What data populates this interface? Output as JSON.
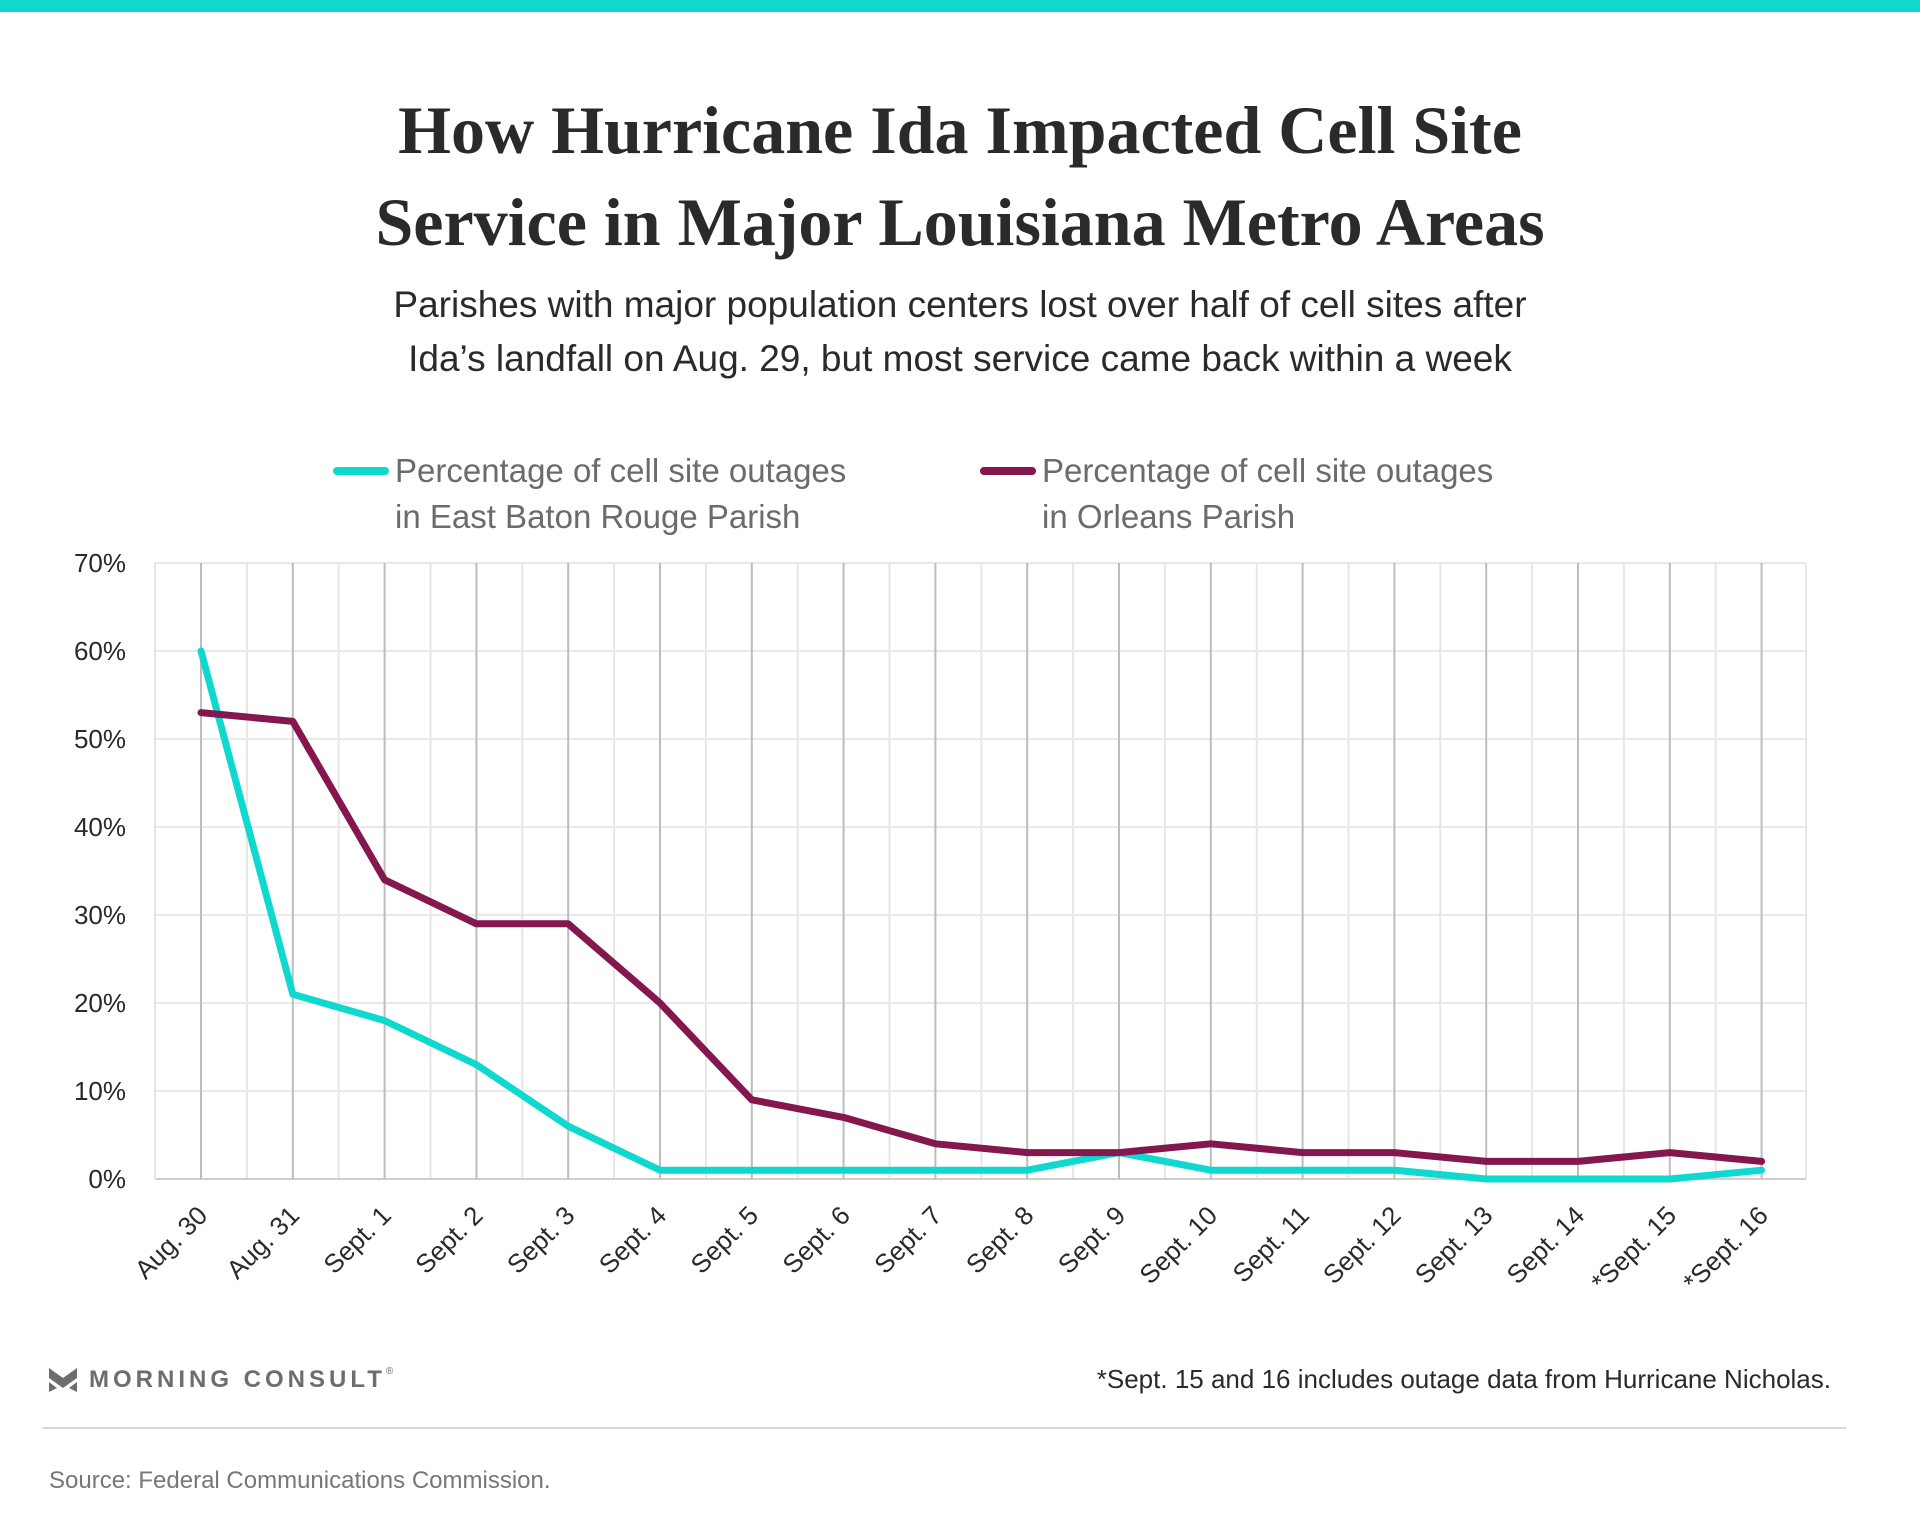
{
  "colors": {
    "accent": "#0fd8cf",
    "east_baton_rouge": "#0fd8cf",
    "orleans": "#84174d"
  },
  "title_lines": [
    "How Hurricane Ida Impacted Cell Site",
    "Service in Major Louisiana Metro Areas"
  ],
  "subtitle_lines": [
    "Parishes with major population centers lost over half of cell sites after",
    "Ida’s landfall on Aug. 29, but most service came back within a week"
  ],
  "legend": [
    {
      "lines": [
        "Percentage of cell site outages",
        "in East Baton Rouge Parish"
      ]
    },
    {
      "lines": [
        "Percentage of cell site outages",
        "in Orleans Parish"
      ]
    }
  ],
  "chart_data": {
    "type": "line",
    "title": "How Hurricane Ida Impacted Cell Site Service in Major Louisiana Metro Areas",
    "xlabel": "",
    "ylabel": "",
    "ylim": [
      0,
      70
    ],
    "yticks": [
      "0%",
      "10%",
      "20%",
      "30%",
      "40%",
      "50%",
      "60%",
      "70%"
    ],
    "grid": true,
    "legend_position": "top",
    "categories": [
      "Aug. 30",
      "Aug. 31",
      "Sept. 1",
      "Sept. 2",
      "Sept. 3",
      "Sept. 4",
      "Sept. 5",
      "Sept. 6",
      "Sept. 7",
      "Sept. 8",
      "Sept. 9",
      "Sept. 10",
      "Sept. 11",
      "Sept. 12",
      "Sept. 13",
      "Sept. 14",
      "*Sept. 15",
      "*Sept. 16"
    ],
    "series": [
      {
        "name": "Percentage of cell site outages in East Baton Rouge Parish",
        "values": [
          60,
          21,
          18,
          13,
          6,
          1,
          1,
          1,
          1,
          1,
          3,
          1,
          1,
          1,
          0,
          0,
          0,
          1
        ]
      },
      {
        "name": "Percentage of cell site outages in Orleans Parish",
        "values": [
          53,
          52,
          34,
          29,
          29,
          20,
          9,
          7,
          4,
          3,
          3,
          4,
          3,
          3,
          2,
          2,
          3,
          2
        ]
      }
    ]
  },
  "footer": {
    "logo_text": "MORNING CONSULT",
    "logo_reg": "®",
    "footnote": "*Sept. 15 and 16 includes outage data from Hurricane Nicholas.",
    "source": "Source: Federal Communications Commission."
  }
}
